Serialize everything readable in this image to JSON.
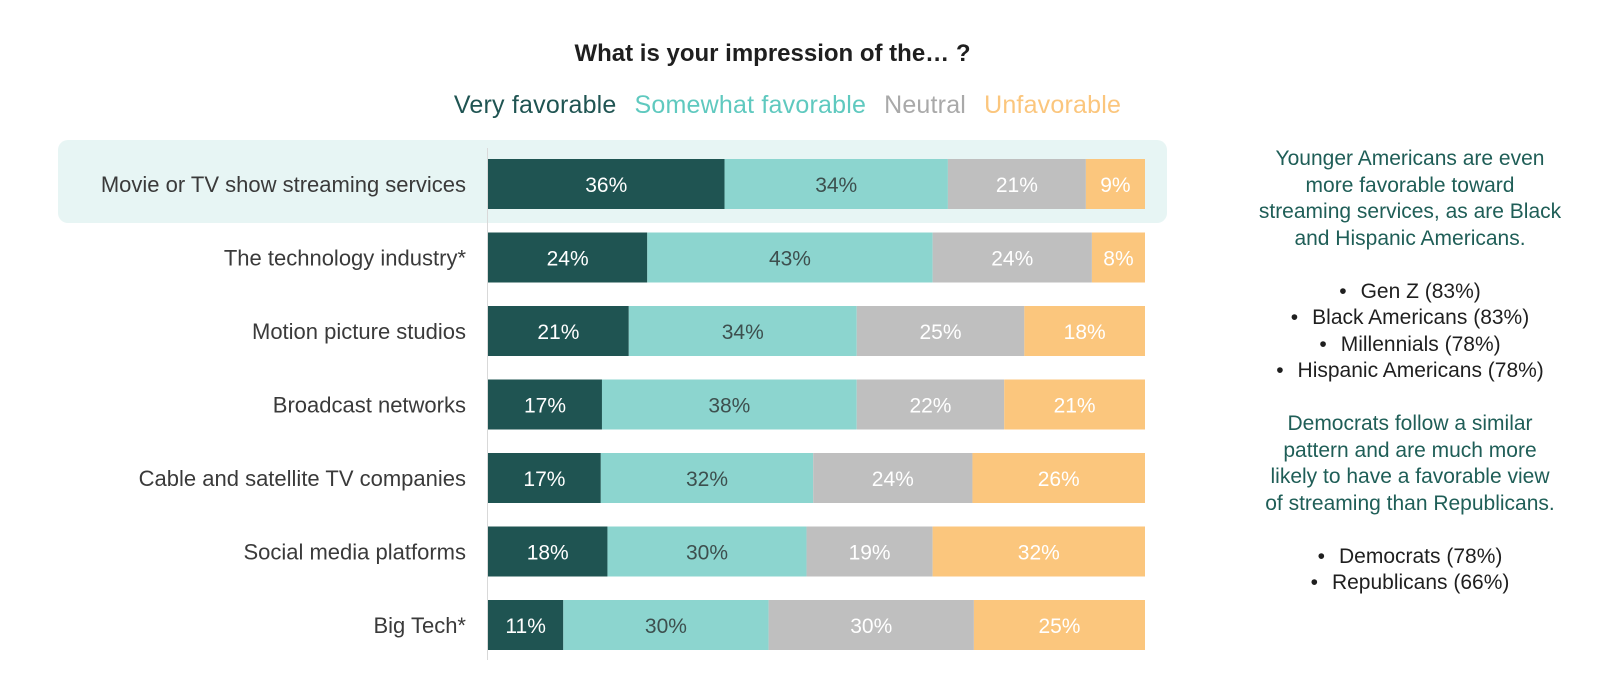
{
  "chart_data": {
    "type": "bar",
    "orientation": "horizontal",
    "stacked": true,
    "title": "What is your impression of the… ?",
    "categories": [
      "Movie or TV show streaming services",
      "The technology industry*",
      "Motion picture studios",
      "Broadcast networks",
      "Cable and satellite TV companies",
      "Social media platforms",
      "Big Tech*"
    ],
    "highlighted_category": 0,
    "series": [
      {
        "name": "Very favorable",
        "color": "#1f5452",
        "label_color": "#ffffff",
        "values": [
          36,
          24,
          21,
          17,
          17,
          18,
          11
        ]
      },
      {
        "name": "Somewhat favorable",
        "color": "#8cd5cf",
        "label_color": "#3d4f4e",
        "values": [
          34,
          43,
          34,
          38,
          32,
          30,
          30
        ]
      },
      {
        "name": "Neutral",
        "color": "#bfbfbf",
        "label_color": "#ffffff",
        "values": [
          21,
          24,
          25,
          22,
          24,
          19,
          30
        ]
      },
      {
        "name": "Unfavorable",
        "color": "#fbc67d",
        "label_color": "#ffffff",
        "values": [
          9,
          8,
          18,
          21,
          26,
          32,
          25
        ]
      }
    ],
    "legend_position": "top",
    "legend_colors": [
      "#1f5452",
      "#5fc9bf",
      "#a9a9a9",
      "#fbc67d"
    ],
    "highlight_color": "#e7f5f4",
    "xlim": [
      0,
      100
    ],
    "grid": false
  },
  "side_note": {
    "paragraph1": [
      "Younger Americans are even",
      "more favorable toward",
      "streaming services, as are Black",
      "and Hispanic Americans."
    ],
    "list1": [
      "Gen Z (83%)",
      "Black Americans (83%)",
      "Millennials (78%)",
      "Hispanic Americans (78%)"
    ],
    "paragraph2": [
      "Democrats follow a similar",
      "pattern and are much more",
      "likely to have a favorable view",
      "of streaming than Republicans."
    ],
    "list2": [
      "Democrats (78%)",
      "Republicans (66%)"
    ]
  }
}
